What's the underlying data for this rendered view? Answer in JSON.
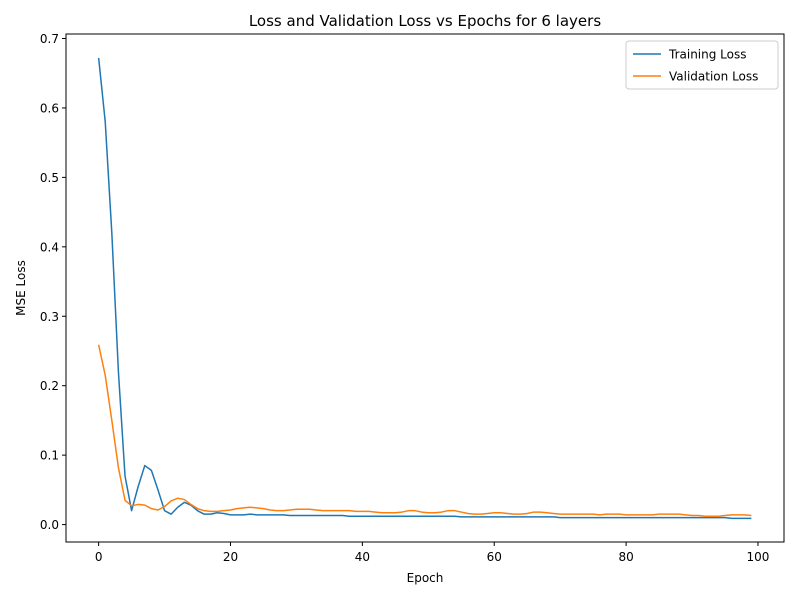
{
  "chart_data": {
    "type": "line",
    "title": "Loss and Validation Loss vs Epochs for 6 layers",
    "xlabel": "Epoch",
    "ylabel": "MSE Loss",
    "xlim": [
      -4.95,
      103.95
    ],
    "ylim": [
      -0.0251,
      0.7065
    ],
    "xticks": [
      0,
      20,
      40,
      60,
      80,
      100
    ],
    "xtick_labels": [
      "0",
      "20",
      "40",
      "60",
      "80",
      "100"
    ],
    "yticks": [
      0.0,
      0.1,
      0.2,
      0.3,
      0.4,
      0.5,
      0.6,
      0.7
    ],
    "ytick_labels": [
      "0.0",
      "0.1",
      "0.2",
      "0.3",
      "0.4",
      "0.5",
      "0.6",
      "0.7"
    ],
    "grid": false,
    "legend_position": "top-right",
    "colors": {
      "training": "#1f77b4",
      "validation": "#ff7f0e"
    },
    "x": [
      0,
      1,
      2,
      3,
      4,
      5,
      6,
      7,
      8,
      9,
      10,
      11,
      12,
      13,
      14,
      15,
      16,
      17,
      18,
      19,
      20,
      21,
      22,
      23,
      24,
      25,
      26,
      27,
      28,
      29,
      30,
      31,
      32,
      33,
      34,
      35,
      36,
      37,
      38,
      39,
      40,
      41,
      42,
      43,
      44,
      45,
      46,
      47,
      48,
      49,
      50,
      51,
      52,
      53,
      54,
      55,
      56,
      57,
      58,
      59,
      60,
      61,
      62,
      63,
      64,
      65,
      66,
      67,
      68,
      69,
      70,
      71,
      72,
      73,
      74,
      75,
      76,
      77,
      78,
      79,
      80,
      81,
      82,
      83,
      84,
      85,
      86,
      87,
      88,
      89,
      90,
      91,
      92,
      93,
      94,
      95,
      96,
      97,
      98,
      99
    ],
    "series": [
      {
        "name": "Training Loss",
        "values": [
          0.672,
          0.58,
          0.42,
          0.22,
          0.07,
          0.02,
          0.055,
          0.085,
          0.078,
          0.05,
          0.02,
          0.015,
          0.025,
          0.032,
          0.028,
          0.02,
          0.015,
          0.015,
          0.017,
          0.016,
          0.014,
          0.014,
          0.014,
          0.015,
          0.014,
          0.014,
          0.014,
          0.014,
          0.014,
          0.013,
          0.013,
          0.013,
          0.013,
          0.013,
          0.013,
          0.013,
          0.013,
          0.013,
          0.012,
          0.012,
          0.012,
          0.012,
          0.012,
          0.012,
          0.012,
          0.012,
          0.012,
          0.012,
          0.012,
          0.012,
          0.012,
          0.012,
          0.012,
          0.012,
          0.012,
          0.011,
          0.011,
          0.011,
          0.011,
          0.011,
          0.011,
          0.011,
          0.011,
          0.011,
          0.011,
          0.011,
          0.011,
          0.011,
          0.011,
          0.011,
          0.01,
          0.01,
          0.01,
          0.01,
          0.01,
          0.01,
          0.01,
          0.01,
          0.01,
          0.01,
          0.01,
          0.01,
          0.01,
          0.01,
          0.01,
          0.01,
          0.01,
          0.01,
          0.01,
          0.01,
          0.01,
          0.01,
          0.01,
          0.01,
          0.01,
          0.01,
          0.009,
          0.009,
          0.009,
          0.009
        ]
      },
      {
        "name": "Validation Loss",
        "values": [
          0.259,
          0.215,
          0.15,
          0.082,
          0.035,
          0.027,
          0.029,
          0.028,
          0.023,
          0.021,
          0.026,
          0.034,
          0.038,
          0.036,
          0.029,
          0.023,
          0.02,
          0.019,
          0.019,
          0.02,
          0.021,
          0.023,
          0.024,
          0.025,
          0.024,
          0.023,
          0.021,
          0.02,
          0.02,
          0.021,
          0.022,
          0.022,
          0.022,
          0.021,
          0.02,
          0.02,
          0.02,
          0.02,
          0.02,
          0.019,
          0.019,
          0.019,
          0.018,
          0.017,
          0.017,
          0.017,
          0.018,
          0.02,
          0.02,
          0.018,
          0.017,
          0.017,
          0.018,
          0.02,
          0.02,
          0.018,
          0.016,
          0.015,
          0.015,
          0.016,
          0.017,
          0.017,
          0.016,
          0.015,
          0.015,
          0.016,
          0.018,
          0.018,
          0.017,
          0.016,
          0.015,
          0.015,
          0.015,
          0.015,
          0.015,
          0.015,
          0.014,
          0.015,
          0.015,
          0.015,
          0.014,
          0.014,
          0.014,
          0.014,
          0.014,
          0.015,
          0.015,
          0.015,
          0.015,
          0.014,
          0.013,
          0.013,
          0.012,
          0.012,
          0.012,
          0.013,
          0.014,
          0.014,
          0.014,
          0.013
        ]
      }
    ]
  }
}
